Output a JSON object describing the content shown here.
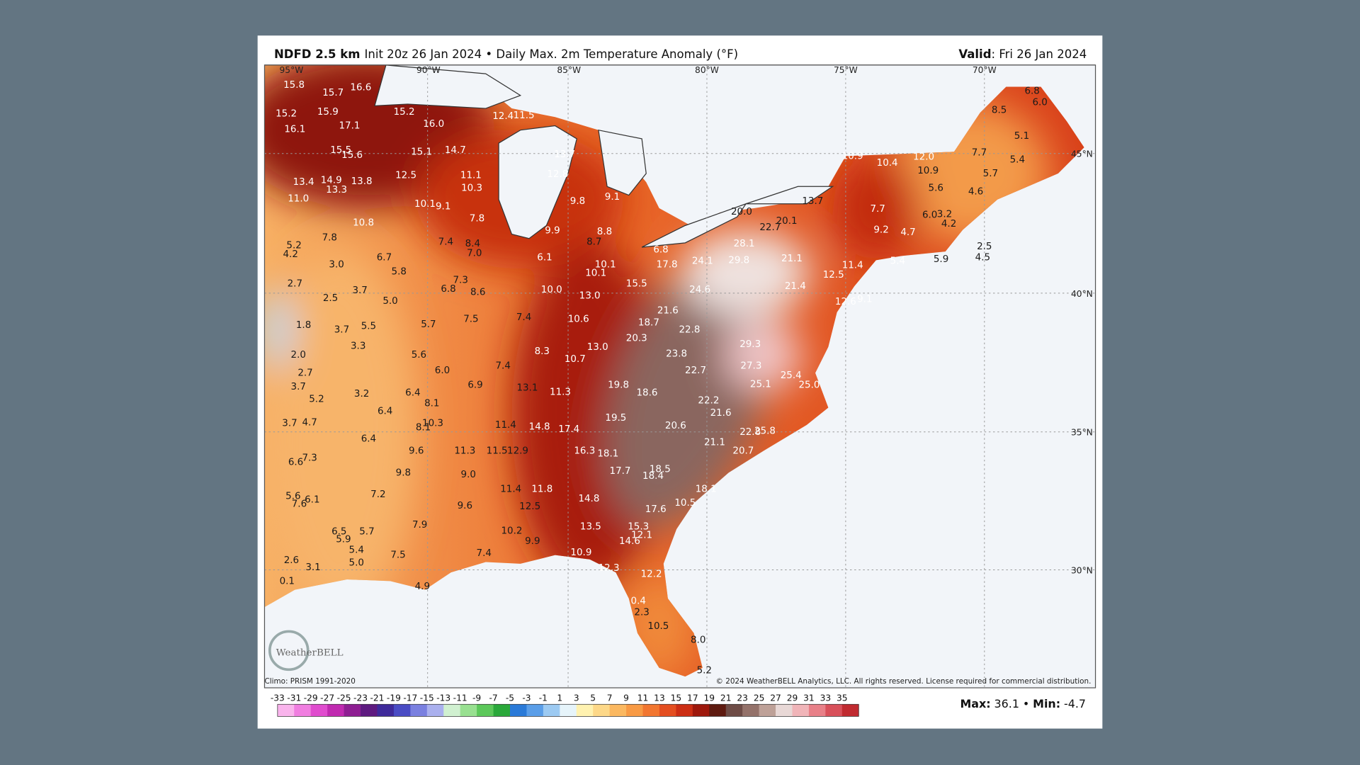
{
  "header": {
    "model": "NDFD 2.5 km",
    "description": "Init 20z 26 Jan 2024 • Daily Max. 2m Temperature Anomaly (°F)",
    "valid_label": "Valid",
    "valid_value": ": Fri 26 Jan 2024"
  },
  "longitude_labels": [
    "95°W",
    "90°W",
    "85°W",
    "80°W",
    "75°W",
    "70°W"
  ],
  "latitude_labels": [
    "45°N",
    "40°N",
    "35°N",
    "30°N"
  ],
  "map_labels": [
    "15.8",
    "15.7",
    "16.6",
    "15.2",
    "15.9",
    "15.2",
    "16.1",
    "17.1",
    "16.0",
    "12.4",
    "11.5",
    "15.5",
    "15.6",
    "15.1",
    "14.7",
    "13.7",
    "12.5",
    "11.1",
    "12.8",
    "13.4",
    "14.9",
    "13.8",
    "13.3",
    "10.3",
    "11.0",
    "10.1",
    "9.1",
    "9.8",
    "9.1",
    "10.8",
    "7.8",
    "9.9",
    "8.8",
    "5.2",
    "7.8",
    "7.4",
    "8.4",
    "7.0",
    "8.7",
    "4.2",
    "3.0",
    "6.7",
    "6.1",
    "10.1",
    "5.8",
    "10.1",
    "17.8",
    "24.1",
    "29.8",
    "21.1",
    "28.1",
    "2.7",
    "7.3",
    "6.8",
    "8.6",
    "10.0",
    "13.0",
    "15.5",
    "24.6",
    "21.4",
    "12.5",
    "11.4",
    "3.7",
    "2.5",
    "5.0",
    "12.6",
    "1.8",
    "3.7",
    "5.5",
    "5.7",
    "7.5",
    "7.4",
    "10.6",
    "21.6",
    "18.7",
    "22.8",
    "20.3",
    "3.3",
    "29.3",
    "2.0",
    "5.6",
    "8.3",
    "13.0",
    "10.7",
    "23.8",
    "7.4",
    "6.0",
    "22.7",
    "27.3",
    "2.7",
    "25.4",
    "3.7",
    "6.9",
    "13.1",
    "19.8",
    "25.1",
    "25.0",
    "11.3",
    "18.6",
    "3.2",
    "6.4",
    "5.2",
    "22.2",
    "8.1",
    "6.4",
    "21.6",
    "19.5",
    "3.7",
    "4.7",
    "10.3",
    "8.1",
    "11.4",
    "14.8",
    "20.6",
    "17.4",
    "22.8",
    "25.8",
    "6.4",
    "21.1",
    "9.6",
    "11.3",
    "11.5",
    "12.9",
    "16.3",
    "20.7",
    "18.1",
    "7.3",
    "6.6",
    "18.5",
    "17.7",
    "9.8",
    "9.0",
    "18.4",
    "18.1",
    "11.4",
    "11.8",
    "7.2",
    "5.6",
    "6.1",
    "14.8",
    "7.6",
    "10.5",
    "9.6",
    "12.5",
    "17.6",
    "7.9",
    "13.5",
    "15.3",
    "10.2",
    "6.5",
    "5.7",
    "12.1",
    "5.9",
    "14.6",
    "9.9",
    "5.4",
    "10.9",
    "7.4",
    "7.5",
    "2.6",
    "5.0",
    "3.1",
    "12.3",
    "12.2",
    "0.1",
    "4.9",
    "0.4",
    "2.3",
    "10.5",
    "8.0",
    "5.2",
    "10.9",
    "10.4",
    "12.0",
    "10.9",
    "7.7",
    "8.5",
    "6.8",
    "6.0",
    "5.1",
    "5.4",
    "5.7",
    "4.6",
    "5.6",
    "13.7",
    "7.7",
    "6.0",
    "3.2",
    "4.2",
    "9.2",
    "4.7",
    "2.5",
    "4.5",
    "5.4",
    "5.9",
    "20.0",
    "20.1",
    "22.7",
    "6.8",
    "9.1"
  ],
  "footer": {
    "climo": "Climo: PRISM 1991-2020",
    "copyright": "© 2024 WeatherBELL Analytics, LLC. All rights reserved. License required for commercial distribution."
  },
  "logo": "WeatherBELL",
  "colorbar": {
    "ticks": [
      -33,
      -31,
      -29,
      -27,
      -25,
      -23,
      -21,
      -19,
      -17,
      -15,
      -13,
      -11,
      -9,
      -7,
      -5,
      -3,
      -1,
      1,
      3,
      5,
      7,
      9,
      11,
      13,
      15,
      17,
      19,
      21,
      23,
      25,
      27,
      29,
      31,
      33,
      35
    ],
    "colors": [
      "#f9b4ec",
      "#f07ee0",
      "#e04cce",
      "#c02ab0",
      "#8e1e92",
      "#5e1a80",
      "#3e2a9a",
      "#4a4cc4",
      "#7a80e0",
      "#aab0ee",
      "#d0f0d0",
      "#98e090",
      "#5cc85a",
      "#2aa83a",
      "#2a7ad8",
      "#5a9ee8",
      "#9ccaf2",
      "#e6f4fa",
      "#fff2b0",
      "#fdd888",
      "#fbb860",
      "#f89a44",
      "#f27630",
      "#e44e20",
      "#cc2e14",
      "#9e180c",
      "#5e1a10",
      "#6e4c46",
      "#94726a",
      "#bea198",
      "#e8d8d6",
      "#f0b4b8",
      "#e88088",
      "#d8505a",
      "#c02a30"
    ]
  },
  "stats": {
    "max_label": "Max:",
    "max": 36.1,
    "separator": "•",
    "min_label": "Min:",
    "min": -4.7
  }
}
